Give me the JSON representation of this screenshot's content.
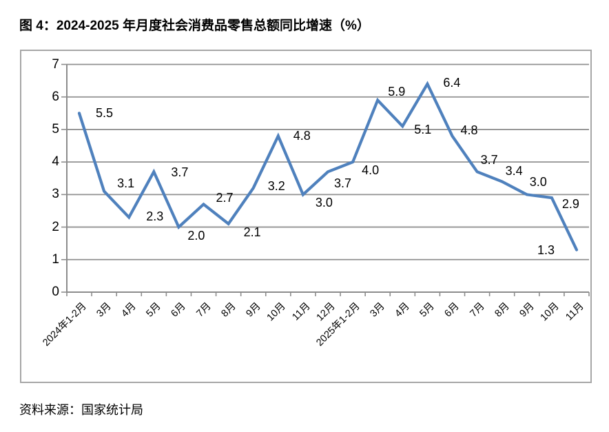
{
  "page": {
    "title": "图 4：2024-2025 年月度社会消费品零售总额同比增速（%）",
    "source": "资料来源：国家统计局"
  },
  "chart_data": {
    "type": "line",
    "title": "图 4：2024-2025 年月度社会消费品零售总额同比增速（%）",
    "categories": [
      "2024年1-2月",
      "3月",
      "4月",
      "5月",
      "6月",
      "7月",
      "8月",
      "9月",
      "10月",
      "11月",
      "12月",
      "2025年1-2月",
      "3月",
      "4月",
      "5月",
      "6月",
      "7月",
      "8月",
      "9月",
      "10月",
      "11月"
    ],
    "values": [
      5.5,
      3.1,
      2.3,
      3.7,
      2.0,
      2.7,
      2.1,
      3.2,
      4.8,
      3.0,
      3.7,
      4.0,
      5.9,
      5.1,
      6.4,
      4.8,
      3.7,
      3.4,
      3.0,
      2.9,
      1.3
    ],
    "xlabel": "",
    "ylabel": "",
    "ylim": [
      0,
      7
    ],
    "yticks": [
      0,
      1,
      2,
      3,
      4,
      5,
      6,
      7
    ],
    "grid": true,
    "legend": "none",
    "data_labels": true,
    "label_format": "one-decimal",
    "source": "资料来源：国家统计局",
    "colors": {
      "series": "#4f81bd",
      "gridline": "#909090",
      "axis": "#8c8c8c",
      "border": "#a6a6a6",
      "text": "#000000",
      "background": "#ffffff"
    }
  }
}
